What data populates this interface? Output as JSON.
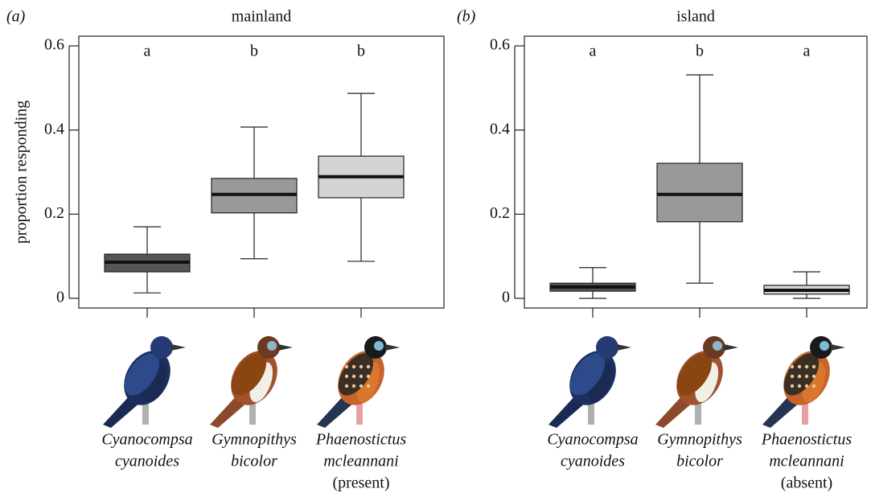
{
  "chart_data": [
    {
      "type": "box",
      "panel_label": "(a)",
      "title": "mainland",
      "y_label": "proportion responding",
      "categories": [
        [
          "Cyanocompsa",
          "cyanoides"
        ],
        [
          "Gymnopithys",
          "bicolor"
        ],
        [
          "Phaenostictus",
          "mcleannani",
          "(present)"
        ]
      ],
      "whisker_low": [
        0.013,
        0.094,
        0.088
      ],
      "q1": [
        0.063,
        0.203,
        0.239
      ],
      "median": [
        0.086,
        0.247,
        0.289
      ],
      "q3": [
        0.105,
        0.285,
        0.338
      ],
      "whisker_high": [
        0.17,
        0.407,
        0.487
      ],
      "colors": [
        "#555555",
        "#999999",
        "#d3d3d3"
      ],
      "letters": [
        "a",
        "b",
        "b"
      ],
      "ylim": [
        -0.023,
        0.623
      ],
      "yticks": [
        0,
        0.2,
        0.4,
        0.6
      ]
    },
    {
      "type": "box",
      "panel_label": "(b)",
      "title": "island",
      "categories": [
        [
          "Cyanocompsa",
          "cyanoides"
        ],
        [
          "Gymnopithys",
          "bicolor"
        ],
        [
          "Phaenostictus",
          "mcleannani",
          "(absent)"
        ]
      ],
      "whisker_low": [
        0,
        0.036,
        0
      ],
      "q1": [
        0.017,
        0.182,
        0.01
      ],
      "median": [
        0.027,
        0.247,
        0.019
      ],
      "q3": [
        0.036,
        0.321,
        0.031
      ],
      "whisker_high": [
        0.073,
        0.531,
        0.063
      ],
      "colors": [
        "#555555",
        "#999999",
        "#d3d3d3"
      ],
      "letters": [
        "a",
        "b",
        "a"
      ],
      "ylim": [
        -0.023,
        0.623
      ],
      "yticks": [
        0,
        0.2,
        0.4,
        0.6
      ]
    }
  ]
}
